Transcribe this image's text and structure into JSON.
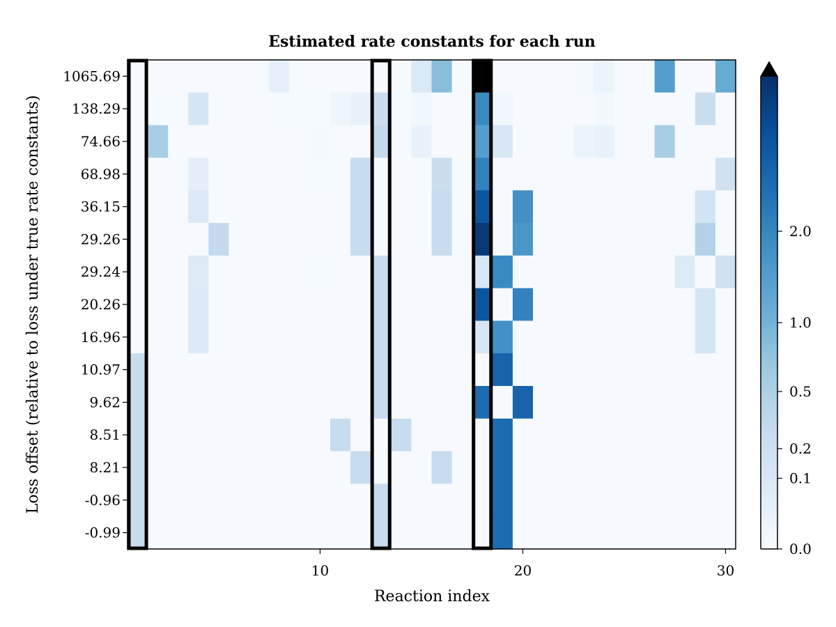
{
  "chart_data": {
    "type": "heatmap",
    "title": "Estimated rate constants for each run",
    "xlabel": "Reaction index",
    "ylabel": "Loss offset (relative to loss under true rate constants)",
    "x_range": [
      1,
      30
    ],
    "x_ticks": [
      10,
      20,
      30
    ],
    "y_labels": [
      "1065.69",
      "138.29",
      "74.66",
      "68.98",
      "36.15",
      "29.26",
      "29.24",
      "20.26",
      "16.96",
      "10.97",
      "9.62",
      "8.51",
      "8.21",
      "-0.96",
      "-0.99"
    ],
    "colorbar": {
      "ticks": [
        0.0,
        0.1,
        0.2,
        0.5,
        1.0,
        2.0
      ],
      "tick_labels": [
        "0.0",
        "0.1",
        "0.2",
        "0.5",
        "1.0",
        "2.0"
      ],
      "extend": "max",
      "colormap": "Blues"
    },
    "highlighted_columns": [
      1,
      13,
      18
    ],
    "values": [
      [
        0.02,
        0.02,
        0.02,
        0.02,
        0.02,
        0.02,
        0.02,
        0.3,
        0.02,
        0.02,
        0.02,
        0.02,
        0.02,
        0.04,
        0.5,
        1.5,
        0.02,
        99,
        0.02,
        0.02,
        0.02,
        0.02,
        0.05,
        0.2,
        0.02,
        0.02,
        2.0,
        0.02,
        0.02,
        1.8
      ],
      [
        0.02,
        0.04,
        0.02,
        0.6,
        0.02,
        0.02,
        0.02,
        0.04,
        0.03,
        0.03,
        0.15,
        0.25,
        0.8,
        0.04,
        0.12,
        0.02,
        0.02,
        2.3,
        0.12,
        0.02,
        0.02,
        0.02,
        0.02,
        0.08,
        0.02,
        0.02,
        0.02,
        0.02,
        0.8,
        0.02
      ],
      [
        0.02,
        1.2,
        0.02,
        0.02,
        0.02,
        0.02,
        0.02,
        0.02,
        0.02,
        0.06,
        0.02,
        0.02,
        0.9,
        0.02,
        0.25,
        0.02,
        0.02,
        2.0,
        0.55,
        0.02,
        0.02,
        0.02,
        0.2,
        0.25,
        0.02,
        0.02,
        1.2,
        0.02,
        0.02,
        0.02
      ],
      [
        0.02,
        0.02,
        0.02,
        0.35,
        0.02,
        0.02,
        0.02,
        0.02,
        0.02,
        0.04,
        0.02,
        0.85,
        0.02,
        0.02,
        0.02,
        0.8,
        0.02,
        2.4,
        0.02,
        0.02,
        0.02,
        0.02,
        0.02,
        0.02,
        0.02,
        0.02,
        0.02,
        0.02,
        0.02,
        0.7
      ],
      [
        0.02,
        0.02,
        0.02,
        0.5,
        0.02,
        0.02,
        0.02,
        0.02,
        0.02,
        0.02,
        0.02,
        0.85,
        0.02,
        0.02,
        0.02,
        0.85,
        0.02,
        3.0,
        0.02,
        2.2,
        0.02,
        0.02,
        0.02,
        0.02,
        0.02,
        0.02,
        0.02,
        0.02,
        0.65,
        0.02
      ],
      [
        0.02,
        0.02,
        0.02,
        0.02,
        0.9,
        0.02,
        0.02,
        0.02,
        0.02,
        0.02,
        0.02,
        0.85,
        0.02,
        0.02,
        0.02,
        0.85,
        0.02,
        3.4,
        0.02,
        2.1,
        0.02,
        0.02,
        0.02,
        0.02,
        0.02,
        0.02,
        0.02,
        0.02,
        1.1,
        0.02
      ],
      [
        0.02,
        0.02,
        0.02,
        0.45,
        0.02,
        0.02,
        0.02,
        0.02,
        0.02,
        0.04,
        0.02,
        0.02,
        0.85,
        0.02,
        0.02,
        0.02,
        0.02,
        0.55,
        2.3,
        0.02,
        0.02,
        0.02,
        0.02,
        0.02,
        0.02,
        0.02,
        0.02,
        0.45,
        0.02,
        0.7
      ],
      [
        0.02,
        0.02,
        0.02,
        0.5,
        0.02,
        0.02,
        0.02,
        0.02,
        0.02,
        0.02,
        0.02,
        0.02,
        0.85,
        0.02,
        0.02,
        0.02,
        0.02,
        3.0,
        0.02,
        2.4,
        0.02,
        0.02,
        0.02,
        0.02,
        0.02,
        0.02,
        0.02,
        0.02,
        0.6,
        0.02
      ],
      [
        0.02,
        0.02,
        0.02,
        0.5,
        0.02,
        0.02,
        0.02,
        0.02,
        0.02,
        0.02,
        0.02,
        0.02,
        0.85,
        0.02,
        0.02,
        0.02,
        0.02,
        0.55,
        2.2,
        0.02,
        0.02,
        0.02,
        0.02,
        0.02,
        0.02,
        0.02,
        0.02,
        0.02,
        0.6,
        0.02
      ],
      [
        0.85,
        0.02,
        0.02,
        0.02,
        0.02,
        0.02,
        0.02,
        0.02,
        0.02,
        0.02,
        0.02,
        0.02,
        0.85,
        0.02,
        0.02,
        0.02,
        0.02,
        0.02,
        2.8,
        0.02,
        0.02,
        0.02,
        0.02,
        0.02,
        0.02,
        0.02,
        0.02,
        0.02,
        0.02,
        0.02
      ],
      [
        0.85,
        0.02,
        0.02,
        0.02,
        0.02,
        0.02,
        0.02,
        0.02,
        0.02,
        0.02,
        0.02,
        0.02,
        0.85,
        0.02,
        0.02,
        0.02,
        0.02,
        2.7,
        0.02,
        2.8,
        0.02,
        0.02,
        0.02,
        0.02,
        0.02,
        0.02,
        0.02,
        0.02,
        0.02,
        0.02
      ],
      [
        0.85,
        0.02,
        0.02,
        0.02,
        0.02,
        0.02,
        0.02,
        0.02,
        0.02,
        0.02,
        0.85,
        0.02,
        0.02,
        0.85,
        0.02,
        0.02,
        0.02,
        0.02,
        2.7,
        0.02,
        0.02,
        0.02,
        0.02,
        0.02,
        0.02,
        0.02,
        0.02,
        0.02,
        0.02,
        0.02
      ],
      [
        0.85,
        0.02,
        0.02,
        0.02,
        0.02,
        0.02,
        0.02,
        0.02,
        0.02,
        0.02,
        0.02,
        0.85,
        0.02,
        0.02,
        0.02,
        0.85,
        0.02,
        0.02,
        2.7,
        0.02,
        0.02,
        0.02,
        0.02,
        0.02,
        0.02,
        0.02,
        0.02,
        0.02,
        0.02,
        0.02
      ],
      [
        0.85,
        0.02,
        0.02,
        0.02,
        0.02,
        0.02,
        0.02,
        0.02,
        0.02,
        0.02,
        0.02,
        0.02,
        0.85,
        0.02,
        0.02,
        0.02,
        0.02,
        0.02,
        2.7,
        0.02,
        0.02,
        0.02,
        0.02,
        0.02,
        0.02,
        0.02,
        0.02,
        0.02,
        0.02,
        0.02
      ],
      [
        0.85,
        0.02,
        0.02,
        0.02,
        0.02,
        0.02,
        0.02,
        0.02,
        0.02,
        0.02,
        0.02,
        0.02,
        0.85,
        0.02,
        0.02,
        0.02,
        0.02,
        0.02,
        2.7,
        0.02,
        0.02,
        0.02,
        0.02,
        0.02,
        0.02,
        0.02,
        0.02,
        0.02,
        0.02,
        0.02
      ]
    ]
  }
}
